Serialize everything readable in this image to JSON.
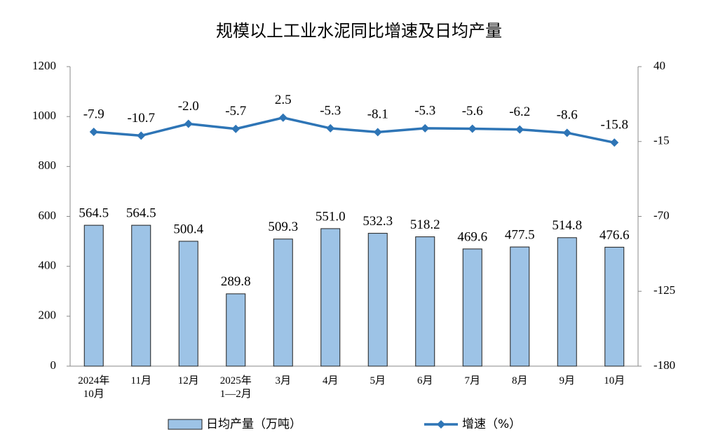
{
  "chart_data": {
    "type": "bar-line",
    "title": "规模以上工业水泥同比增速及日均产量",
    "categories": [
      "2024年\n10月",
      "11月",
      "12月",
      "2025年\n1—2月",
      "3月",
      "4月",
      "5月",
      "6月",
      "7月",
      "8月",
      "9月",
      "10月"
    ],
    "series": [
      {
        "name": "日均产量（万吨）",
        "type": "bar",
        "color": "#9dc3e6",
        "axis": "y",
        "values": [
          564.5,
          564.5,
          500.4,
          289.8,
          509.3,
          551.0,
          532.3,
          518.2,
          469.6,
          477.5,
          514.8,
          476.6
        ],
        "value_labels": [
          "564.5",
          "564.5",
          "500.4",
          "289.8",
          "509.3",
          "551.0",
          "532.3",
          "518.2",
          "469.6",
          "477.5",
          "514.8",
          "476.6"
        ]
      },
      {
        "name": "增速（%）",
        "type": "line",
        "color": "#2e75b6",
        "axis": "y2",
        "values": [
          -7.9,
          -10.7,
          -2.0,
          -5.7,
          2.5,
          -5.3,
          -8.1,
          -5.3,
          -5.6,
          -6.2,
          -8.6,
          -15.8
        ],
        "value_labels": [
          "-7.9",
          "-10.7",
          "-2.0",
          "-5.7",
          "2.5",
          "-5.3",
          "-8.1",
          "-5.3",
          "-5.6",
          "-6.2",
          "-8.6",
          "-15.8"
        ]
      }
    ],
    "ylim": [
      0,
      1200
    ],
    "yticks": [
      0,
      200,
      400,
      600,
      800,
      1000,
      1200
    ],
    "y2lim": [
      -180,
      40
    ],
    "y2ticks": [
      -180,
      -125,
      -70,
      -15,
      40
    ],
    "grid": false,
    "legend": "bottom"
  }
}
